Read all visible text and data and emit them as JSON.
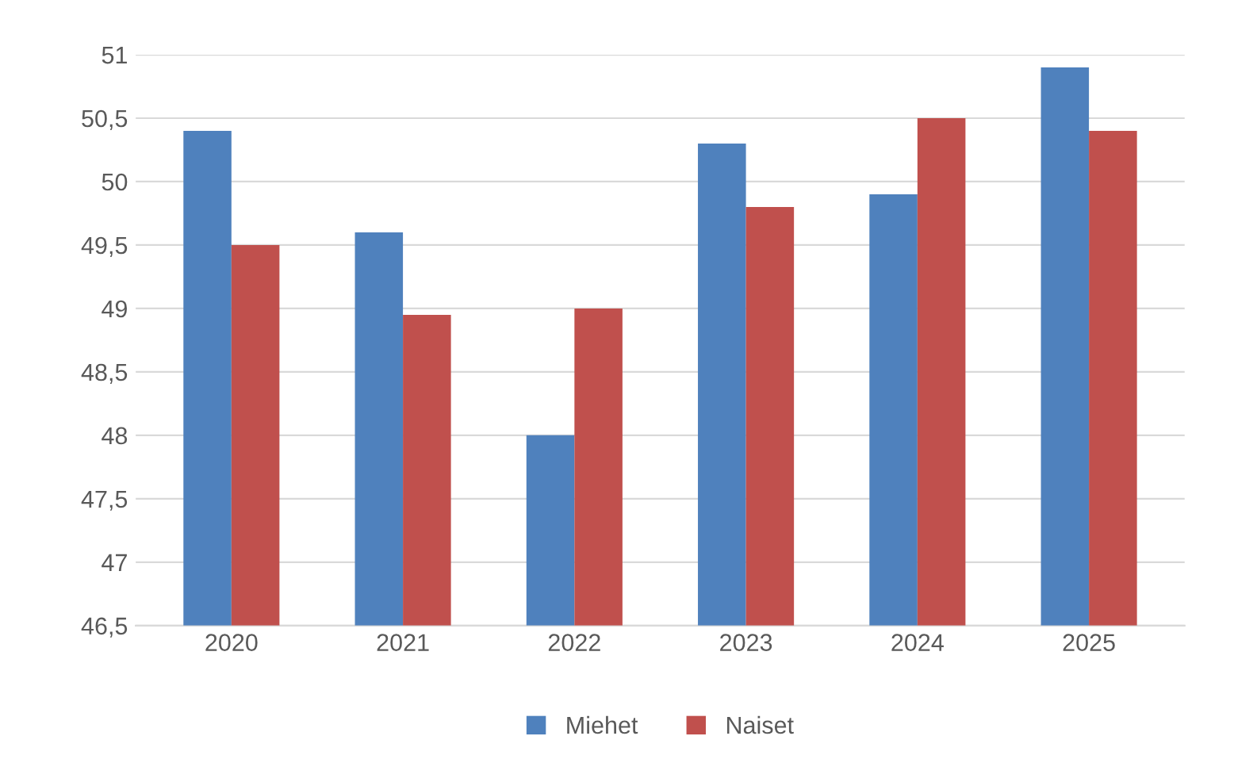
{
  "chart_data": {
    "type": "bar",
    "categories": [
      "2020",
      "2021",
      "2022",
      "2023",
      "2024",
      "2025"
    ],
    "series": [
      {
        "name": "Miehet",
        "color": "#4f81bd",
        "values": [
          50.4,
          49.6,
          48.0,
          50.3,
          49.9,
          50.9
        ]
      },
      {
        "name": "Naiset",
        "color": "#c0504d",
        "values": [
          49.5,
          48.95,
          49.0,
          49.8,
          50.5,
          50.4
        ]
      }
    ],
    "ylim": [
      46.5,
      51
    ],
    "yticks": [
      {
        "value": 46.5,
        "label": "46,5"
      },
      47,
      {
        "value": 47.5,
        "label": "47,5"
      },
      48,
      {
        "value": 48.5,
        "label": "48,5"
      },
      49,
      {
        "value": 49.5,
        "label": "49,5"
      },
      50,
      {
        "value": 50.5,
        "label": "50,5"
      },
      51
    ],
    "grid": "y",
    "legend": "bottom"
  }
}
